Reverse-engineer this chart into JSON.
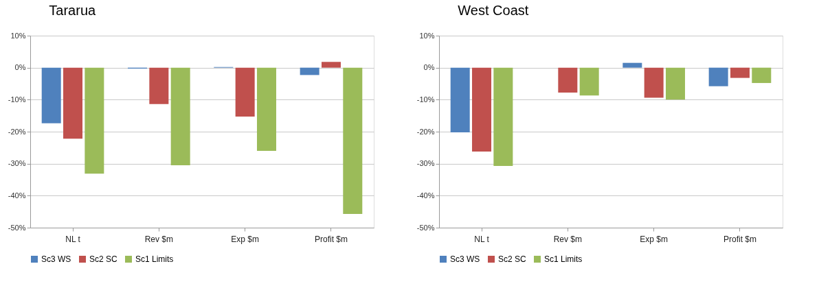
{
  "chart_data": [
    {
      "type": "bar",
      "title": "Tararua",
      "categories": [
        "NL t",
        "Rev $m",
        "Exp $m",
        "Profit $m"
      ],
      "series": [
        {
          "name": "Sc3 WS",
          "color": "#4f81bd",
          "values": [
            -17.4,
            -0.3,
            0.2,
            -2.3
          ]
        },
        {
          "name": "Sc2 SC",
          "color": "#c0504d",
          "values": [
            -22.2,
            -11.4,
            -15.3,
            1.8
          ]
        },
        {
          "name": "Sc1 Limits",
          "color": "#9bbb59",
          "values": [
            -33.1,
            -30.5,
            -26.0,
            -45.7
          ]
        }
      ],
      "ylim": [
        -50,
        10
      ],
      "yticks": [
        {
          "value": -50,
          "label": "-50%"
        },
        {
          "value": -40,
          "label": "-40%"
        },
        {
          "value": -30,
          "label": "-30%"
        },
        {
          "value": -20,
          "label": "-20%"
        },
        {
          "value": -10,
          "label": "-10%"
        },
        {
          "value": 0,
          "label": "0%"
        },
        {
          "value": 10,
          "label": "10%"
        }
      ],
      "grid": "y",
      "legend": "bottom"
    },
    {
      "type": "bar",
      "title": "West Coast",
      "categories": [
        "NL t",
        "Rev $m",
        "Exp $m",
        "Profit $m"
      ],
      "series": [
        {
          "name": "Sc3 WS",
          "color": "#4f81bd",
          "values": [
            -20.2,
            0,
            1.5,
            -5.8
          ]
        },
        {
          "name": "Sc2 SC",
          "color": "#c0504d",
          "values": [
            -26.2,
            -7.8,
            -9.4,
            -3.2
          ]
        },
        {
          "name": "Sc1 Limits",
          "color": "#9bbb59",
          "values": [
            -30.7,
            -8.7,
            -10.0,
            -4.8
          ]
        }
      ],
      "ylim": [
        -50,
        10
      ],
      "yticks": [
        {
          "value": -50,
          "label": "-50%"
        },
        {
          "value": -40,
          "label": "-40%"
        },
        {
          "value": -30,
          "label": "-30%"
        },
        {
          "value": -20,
          "label": "-20%"
        },
        {
          "value": -10,
          "label": "-10%"
        },
        {
          "value": 0,
          "label": "0%"
        },
        {
          "value": 10,
          "label": "10%"
        }
      ],
      "grid": "y",
      "legend": "bottom"
    }
  ]
}
